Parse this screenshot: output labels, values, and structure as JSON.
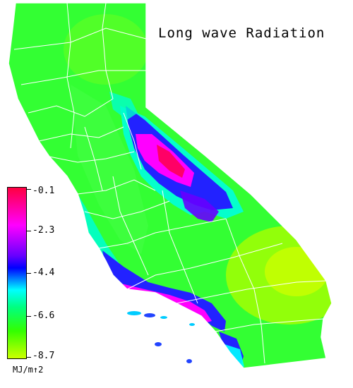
{
  "title": "Long wave Radiation",
  "legend": {
    "ticks": [
      "-0.1",
      "-2.3",
      "-4.4",
      "-6.6",
      "-8.7"
    ],
    "units": "MJ/m↑2",
    "colors": [
      "#ff0040",
      "#ff00ff",
      "#6600ff",
      "#0000ff",
      "#00ffff",
      "#00ff80",
      "#33ff00",
      "#ccff00"
    ]
  },
  "map": {
    "region": "California",
    "colors": {
      "base": "#33ff33",
      "lowland": "#55ff22",
      "desert": "#aaff00",
      "mountain_mid": "#00ffcc",
      "mountain_high": "#ff00ff",
      "peak": "#ff0066",
      "deep": "#2222ff",
      "boundary": "#ffffff"
    }
  }
}
